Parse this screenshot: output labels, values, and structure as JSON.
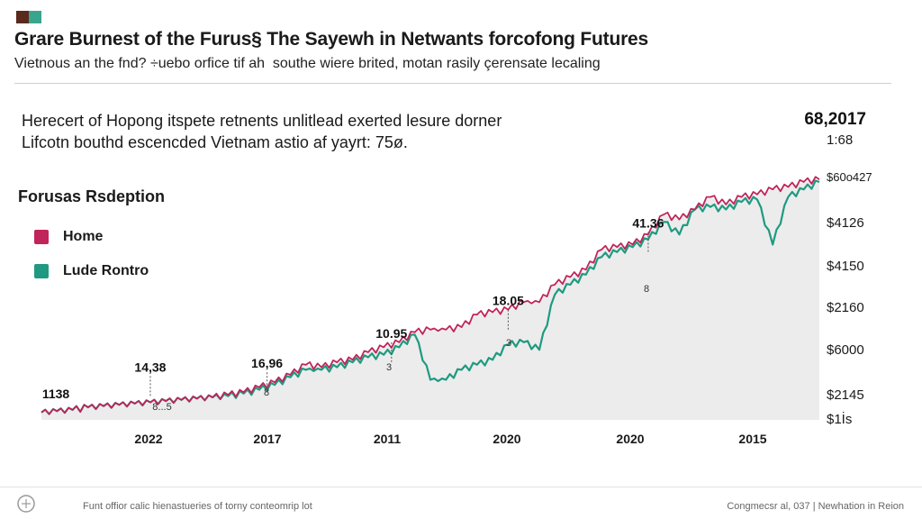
{
  "header": {
    "title": "Grare Burnest of the Furus§ The Sayewh in Netwants forcofong Futures",
    "subtitle": "Vietnous an the fnd? ÷uebo orfice tif ah  southe wiere brited, motan rasily çerensate lecaling"
  },
  "description": {
    "line1": "Herecert of Hopong itspete retnents unlitlead exerted lesure dorner",
    "line2": "Lifcotn bouthd escencded Vietnam astio af yayrt: 75ø."
  },
  "legend": {
    "title": "Forusas Rsdeption",
    "items": [
      {
        "label": "Home",
        "color": "#c0245a"
      },
      {
        "label": "Lude Rontro",
        "color": "#1f9a80"
      }
    ]
  },
  "footer": {
    "left": "Funt offior calic hienastueries of torny conteomrip lot",
    "right": "Congmecsr al, 037 | Newhation in Reion"
  },
  "chart_data": {
    "type": "line",
    "title": "Grare Burnest of the Furus§ The Sayewh in Netwants forcofong Futures",
    "xlabel": "",
    "ylabel": "",
    "categories": [
      "2022",
      "2017",
      "2011",
      "2020",
      "2020",
      "2015"
    ],
    "x_range": [
      0,
      100
    ],
    "ylim": [
      0,
      100
    ],
    "y_tick_labels": [
      "$1İs",
      "$2145",
      "$6000",
      "$2160",
      "$4150",
      "$4126",
      "$60o427",
      "1:68"
    ],
    "top_value_label": "68,2017",
    "series": [
      {
        "name": "Home",
        "color": "#c0245a",
        "x": [
          0,
          2,
          4,
          6,
          8,
          10,
          12,
          14,
          16,
          18,
          20,
          22,
          24,
          26,
          28,
          30,
          32,
          34,
          36,
          38,
          40,
          42,
          44,
          46,
          48,
          50,
          52,
          54,
          56,
          58,
          60,
          62,
          64,
          66,
          68,
          70,
          72,
          74,
          76,
          78,
          80,
          82,
          84,
          86,
          88,
          90,
          92,
          94,
          96,
          98,
          100
        ],
        "values": [
          3,
          3.5,
          4,
          5,
          5.5,
          6,
          6.5,
          7,
          7.5,
          8,
          8.5,
          9,
          10,
          11,
          13,
          15,
          18,
          22,
          21,
          23,
          24,
          27,
          29,
          31,
          35,
          36,
          36,
          37,
          42,
          43,
          44,
          47,
          47,
          54,
          57,
          60,
          68,
          69,
          70,
          74,
          82,
          80,
          84,
          89,
          86,
          89,
          90,
          92,
          93,
          95,
          96
        ]
      },
      {
        "name": "Lude Rontro",
        "color": "#1f9a80",
        "x": [
          0,
          2,
          4,
          6,
          8,
          10,
          12,
          14,
          16,
          18,
          20,
          22,
          24,
          26,
          28,
          30,
          32,
          34,
          36,
          38,
          40,
          42,
          44,
          46,
          48,
          50,
          52,
          54,
          56,
          58,
          60,
          62,
          64,
          66,
          68,
          70,
          72,
          74,
          76,
          78,
          80,
          82,
          84,
          86,
          88,
          90,
          92,
          94,
          96,
          98,
          100
        ],
        "values": [
          3,
          3.5,
          4,
          5,
          5.5,
          6,
          6.5,
          7,
          7.5,
          8,
          8.5,
          9,
          9.5,
          10.5,
          12,
          14,
          17,
          20,
          20,
          21,
          23,
          25,
          26,
          29,
          34,
          16,
          16,
          20,
          22,
          24,
          30,
          31,
          28,
          50,
          54,
          58,
          65,
          67,
          69,
          72,
          79,
          74,
          84,
          85,
          84,
          87,
          88,
          70,
          89,
          92,
          95
        ]
      }
    ],
    "annotations": [
      {
        "label": "1138",
        "x": 0,
        "y": 3
      },
      {
        "label": "14,38",
        "x": 14,
        "y": 8.5
      },
      {
        "label": "16,96",
        "x": 29,
        "y": 10
      },
      {
        "label": "10.95",
        "x": 45,
        "y": 22
      },
      {
        "label": "18.05",
        "x": 60,
        "y": 35
      },
      {
        "label": "41.36",
        "x": 78,
        "y": 66
      }
    ],
    "annotation_sublabels": [
      "8...5",
      "8",
      "3",
      "3",
      "8"
    ],
    "grid": false,
    "legend_position": "left"
  }
}
